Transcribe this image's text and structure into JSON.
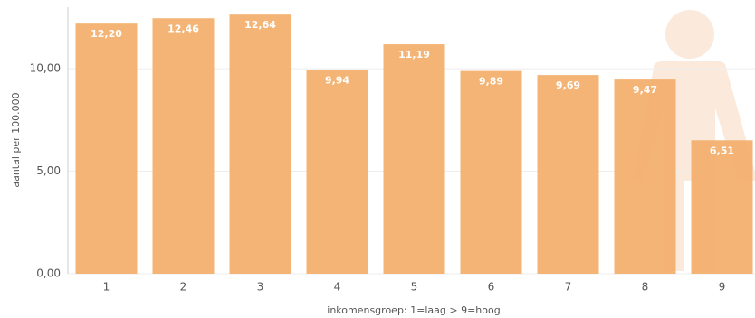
{
  "chart_data": {
    "type": "bar",
    "x_label": "inkomensgroep: 1=laag > 9=hoog",
    "y_label": "aantal per 100.000",
    "categories": [
      "1",
      "2",
      "3",
      "4",
      "5",
      "6",
      "7",
      "8",
      "9"
    ],
    "values": [
      12.2,
      12.46,
      12.64,
      9.94,
      11.19,
      9.89,
      9.69,
      9.47,
      6.51
    ],
    "value_labels": [
      "12,20",
      "12,46",
      "12,64",
      "9,94",
      "11,19",
      "9,89",
      "9,69",
      "9,47",
      "6,51"
    ],
    "color": "#f3b06f",
    "ylim": [
      0,
      13
    ],
    "yticks": [
      {
        "value": 0,
        "label": "0,00"
      },
      {
        "value": 5,
        "label": "5,00"
      },
      {
        "value": 10,
        "label": "10,00"
      }
    ],
    "grid": true
  }
}
